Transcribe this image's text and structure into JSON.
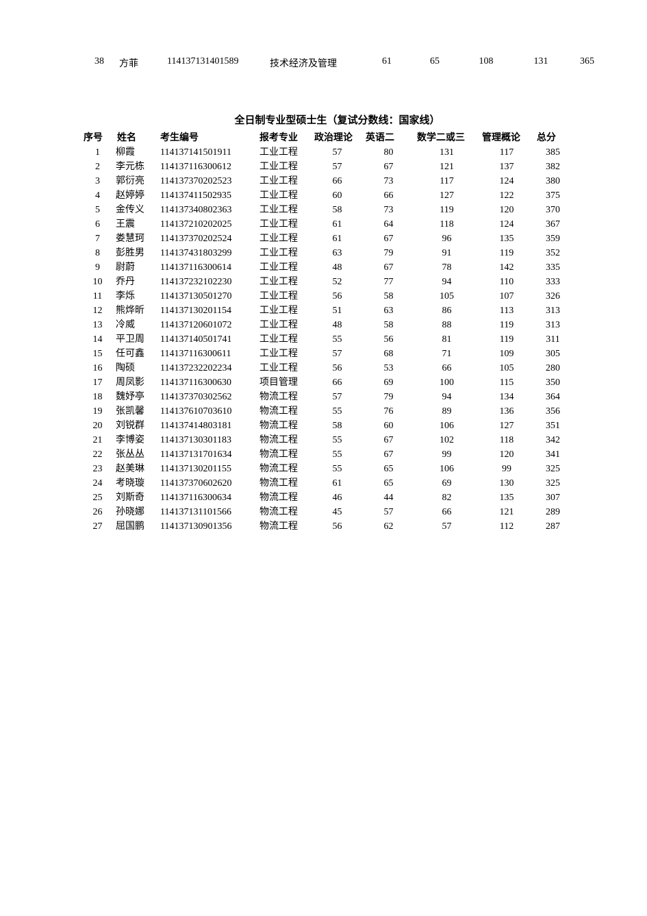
{
  "topRow": {
    "idx": "38",
    "name": "方菲",
    "num": "114137131401589",
    "major": "技术经济及管理",
    "s1": "61",
    "s2": "65",
    "s3": "108",
    "s4": "131",
    "total": "365"
  },
  "title": "全日制专业型硕士生（复试分数线：国家线）",
  "headers": {
    "idx": "序号",
    "name": "姓名",
    "num": "考生编号",
    "major": "报考专业",
    "s1": "政治理论",
    "s2": "英语二",
    "s3": "数学二或三",
    "s4": "管理概论",
    "total": "总分"
  },
  "rows": [
    {
      "idx": "1",
      "name": "柳霞",
      "num": "114137141501911",
      "major": "工业工程",
      "s1": "57",
      "s2": "80",
      "s3": "131",
      "s4": "117",
      "total": "385"
    },
    {
      "idx": "2",
      "name": "李元栋",
      "num": "114137116300612",
      "major": "工业工程",
      "s1": "57",
      "s2": "67",
      "s3": "121",
      "s4": "137",
      "total": "382"
    },
    {
      "idx": "3",
      "name": "郭衍亮",
      "num": "114137370202523",
      "major": "工业工程",
      "s1": "66",
      "s2": "73",
      "s3": "117",
      "s4": "124",
      "total": "380"
    },
    {
      "idx": "4",
      "name": "赵婷婷",
      "num": "114137411502935",
      "major": "工业工程",
      "s1": "60",
      "s2": "66",
      "s3": "127",
      "s4": "122",
      "total": "375"
    },
    {
      "idx": "5",
      "name": "金传义",
      "num": "114137340802363",
      "major": "工业工程",
      "s1": "58",
      "s2": "73",
      "s3": "119",
      "s4": "120",
      "total": "370"
    },
    {
      "idx": "6",
      "name": "王震",
      "num": "114137210202025",
      "major": "工业工程",
      "s1": "61",
      "s2": "64",
      "s3": "118",
      "s4": "124",
      "total": "367"
    },
    {
      "idx": "7",
      "name": "娄慧珂",
      "num": "114137370202524",
      "major": "工业工程",
      "s1": "61",
      "s2": "67",
      "s3": "96",
      "s4": "135",
      "total": "359"
    },
    {
      "idx": "8",
      "name": "彭胜男",
      "num": "114137431803299",
      "major": "工业工程",
      "s1": "63",
      "s2": "79",
      "s3": "91",
      "s4": "119",
      "total": "352"
    },
    {
      "idx": "9",
      "name": "尉蔚",
      "num": "114137116300614",
      "major": "工业工程",
      "s1": "48",
      "s2": "67",
      "s3": "78",
      "s4": "142",
      "total": "335"
    },
    {
      "idx": "10",
      "name": "乔丹",
      "num": "114137232102230",
      "major": "工业工程",
      "s1": "52",
      "s2": "77",
      "s3": "94",
      "s4": "110",
      "total": "333"
    },
    {
      "idx": "11",
      "name": "李烁",
      "num": "114137130501270",
      "major": "工业工程",
      "s1": "56",
      "s2": "58",
      "s3": "105",
      "s4": "107",
      "total": "326"
    },
    {
      "idx": "12",
      "name": "熊烨昕",
      "num": "114137130201154",
      "major": "工业工程",
      "s1": "51",
      "s2": "63",
      "s3": "86",
      "s4": "113",
      "total": "313"
    },
    {
      "idx": "13",
      "name": "冷威",
      "num": "114137120601072",
      "major": "工业工程",
      "s1": "48",
      "s2": "58",
      "s3": "88",
      "s4": "119",
      "total": "313"
    },
    {
      "idx": "14",
      "name": "平卫周",
      "num": "114137140501741",
      "major": "工业工程",
      "s1": "55",
      "s2": "56",
      "s3": "81",
      "s4": "119",
      "total": "311"
    },
    {
      "idx": "15",
      "name": "任可鑫",
      "num": "114137116300611",
      "major": "工业工程",
      "s1": "57",
      "s2": "68",
      "s3": "71",
      "s4": "109",
      "total": "305"
    },
    {
      "idx": "16",
      "name": "陶硕",
      "num": "114137232202234",
      "major": "工业工程",
      "s1": "56",
      "s2": "53",
      "s3": "66",
      "s4": "105",
      "total": "280"
    },
    {
      "idx": "17",
      "name": "周凤影",
      "num": "114137116300630",
      "major": "项目管理",
      "s1": "66",
      "s2": "69",
      "s3": "100",
      "s4": "115",
      "total": "350"
    },
    {
      "idx": "18",
      "name": "魏妤亭",
      "num": "114137370302562",
      "major": "物流工程",
      "s1": "57",
      "s2": "79",
      "s3": "94",
      "s4": "134",
      "total": "364"
    },
    {
      "idx": "19",
      "name": "张凯馨",
      "num": "114137610703610",
      "major": "物流工程",
      "s1": "55",
      "s2": "76",
      "s3": "89",
      "s4": "136",
      "total": "356"
    },
    {
      "idx": "20",
      "name": "刘锐群",
      "num": "114137414803181",
      "major": "物流工程",
      "s1": "58",
      "s2": "60",
      "s3": "106",
      "s4": "127",
      "total": "351"
    },
    {
      "idx": "21",
      "name": "李博姿",
      "num": "114137130301183",
      "major": "物流工程",
      "s1": "55",
      "s2": "67",
      "s3": "102",
      "s4": "118",
      "total": "342"
    },
    {
      "idx": "22",
      "name": "张丛丛",
      "num": "114137131701634",
      "major": "物流工程",
      "s1": "55",
      "s2": "67",
      "s3": "99",
      "s4": "120",
      "total": "341"
    },
    {
      "idx": "23",
      "name": "赵美琳",
      "num": "114137130201155",
      "major": "物流工程",
      "s1": "55",
      "s2": "65",
      "s3": "106",
      "s4": "99",
      "total": "325"
    },
    {
      "idx": "24",
      "name": "考晓璇",
      "num": "114137370602620",
      "major": "物流工程",
      "s1": "61",
      "s2": "65",
      "s3": "69",
      "s4": "130",
      "total": "325"
    },
    {
      "idx": "25",
      "name": "刘斯奇",
      "num": "114137116300634",
      "major": "物流工程",
      "s1": "46",
      "s2": "44",
      "s3": "82",
      "s4": "135",
      "total": "307"
    },
    {
      "idx": "26",
      "name": "孙晓娜",
      "num": "114137131101566",
      "major": "物流工程",
      "s1": "45",
      "s2": "57",
      "s3": "66",
      "s4": "121",
      "total": "289"
    },
    {
      "idx": "27",
      "name": "屈国鹏",
      "num": "114137130901356",
      "major": "物流工程",
      "s1": "56",
      "s2": "62",
      "s3": "57",
      "s4": "112",
      "total": "287"
    }
  ]
}
